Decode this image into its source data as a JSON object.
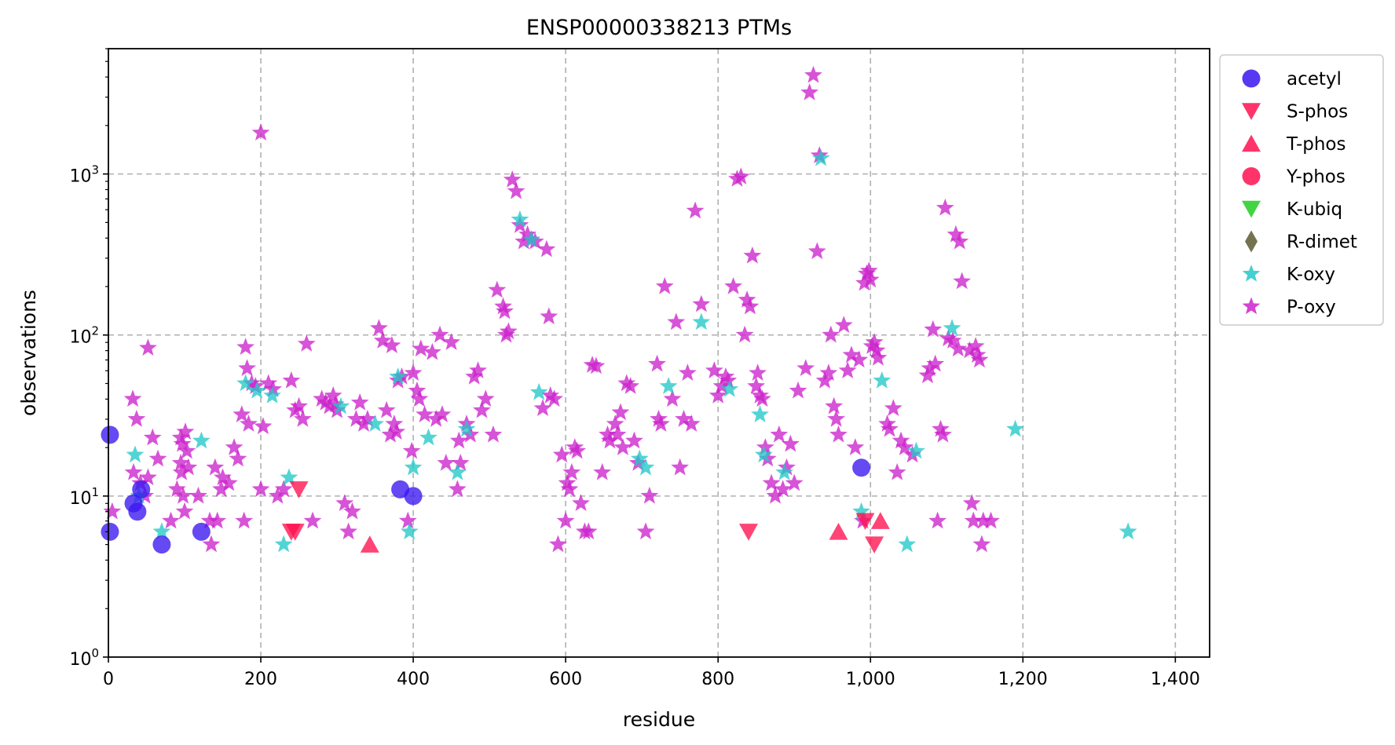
{
  "chart_data": {
    "type": "scatter",
    "title": "ENSP00000338213 PTMs",
    "xlabel": "residue",
    "ylabel": "observations",
    "xlim": [
      0,
      1445
    ],
    "ylim": [
      1,
      6000
    ],
    "yscale": "log",
    "grid": true,
    "legend_position": "outside-top-right",
    "x_ticks": [
      0,
      200,
      400,
      600,
      800,
      1000,
      1200,
      1400
    ],
    "x_tick_labels": [
      "0",
      "200",
      "400",
      "600",
      "800",
      "1,000",
      "1,200",
      "1,400"
    ],
    "y_ticks": [
      1,
      10,
      100,
      1000
    ],
    "y_tick_labels": [
      {
        "base": "10",
        "exp": "0"
      },
      {
        "base": "10",
        "exp": "1"
      },
      {
        "base": "10",
        "exp": "2"
      },
      {
        "base": "10",
        "exp": "3"
      }
    ],
    "series": [
      {
        "name": "acetyl",
        "marker": "circle",
        "color": "#3a16f0",
        "points": [
          [
            2,
            24
          ],
          [
            2,
            6
          ],
          [
            33,
            9
          ],
          [
            38,
            8
          ],
          [
            43,
            11
          ],
          [
            70,
            5
          ],
          [
            122,
            6
          ],
          [
            383,
            11
          ],
          [
            400,
            10
          ],
          [
            988,
            15
          ]
        ]
      },
      {
        "name": "S-phos",
        "marker": "triangle-down",
        "color": "#ff1050",
        "points": [
          [
            240,
            6
          ],
          [
            245,
            6
          ],
          [
            250,
            11
          ],
          [
            840,
            6
          ],
          [
            993,
            7
          ],
          [
            1005,
            5
          ]
        ]
      },
      {
        "name": "T-phos",
        "marker": "triangle-up",
        "color": "#ff1050",
        "points": [
          [
            343,
            5
          ],
          [
            958,
            6
          ],
          [
            1013,
            7
          ]
        ]
      },
      {
        "name": "Y-phos",
        "marker": "circle",
        "color": "#ff1050",
        "points": []
      },
      {
        "name": "K-ubiq",
        "marker": "triangle-down",
        "color": "#22cc22",
        "points": []
      },
      {
        "name": "R-dimet",
        "marker": "diamond",
        "color": "#5a5a30",
        "points": []
      },
      {
        "name": "K-oxy",
        "marker": "star",
        "color": "#22c8c8",
        "points": [
          [
            35,
            18
          ],
          [
            40,
            10
          ],
          [
            70,
            6
          ],
          [
            122,
            22
          ],
          [
            180,
            50
          ],
          [
            195,
            45
          ],
          [
            215,
            42
          ],
          [
            230,
            5
          ],
          [
            237,
            13
          ],
          [
            305,
            36
          ],
          [
            350,
            28
          ],
          [
            380,
            55
          ],
          [
            395,
            6
          ],
          [
            400,
            15
          ],
          [
            420,
            23
          ],
          [
            458,
            14
          ],
          [
            470,
            26
          ],
          [
            540,
            520
          ],
          [
            555,
            390
          ],
          [
            565,
            44
          ],
          [
            697,
            17
          ],
          [
            705,
            15
          ],
          [
            735,
            48
          ],
          [
            778,
            120
          ],
          [
            815,
            46
          ],
          [
            855,
            32
          ],
          [
            860,
            18
          ],
          [
            887,
            14
          ],
          [
            935,
            1250
          ],
          [
            988,
            8
          ],
          [
            1015,
            52
          ],
          [
            1048,
            5
          ],
          [
            1060,
            19
          ],
          [
            1107,
            110
          ],
          [
            1190,
            26
          ],
          [
            1338,
            6
          ]
        ]
      },
      {
        "name": "P-oxy",
        "marker": "star",
        "color": "#cc22cc",
        "points": [
          [
            5,
            8
          ],
          [
            32,
            40
          ],
          [
            37,
            30
          ],
          [
            33,
            14
          ],
          [
            42,
            12
          ],
          [
            52,
            83
          ],
          [
            58,
            23
          ],
          [
            65,
            17
          ],
          [
            52,
            13
          ],
          [
            48,
            10
          ],
          [
            82,
            7
          ],
          [
            90,
            11
          ],
          [
            95,
            23
          ],
          [
            97,
            21
          ],
          [
            95,
            16
          ],
          [
            96,
            14
          ],
          [
            98,
            10
          ],
          [
            101,
            25
          ],
          [
            103,
            19
          ],
          [
            105,
            15
          ],
          [
            100,
            8
          ],
          [
            118,
            10
          ],
          [
            133,
            7
          ],
          [
            135,
            5
          ],
          [
            140,
            15
          ],
          [
            143,
            7
          ],
          [
            148,
            11
          ],
          [
            150,
            13
          ],
          [
            158,
            12
          ],
          [
            165,
            20
          ],
          [
            170,
            17
          ],
          [
            175,
            32
          ],
          [
            178,
            7
          ],
          [
            180,
            84
          ],
          [
            182,
            62
          ],
          [
            184,
            28
          ],
          [
            188,
            50
          ],
          [
            193,
            48
          ],
          [
            200,
            1800
          ],
          [
            200,
            11
          ],
          [
            203,
            27
          ],
          [
            210,
            50
          ],
          [
            216,
            46
          ],
          [
            222,
            10
          ],
          [
            230,
            11
          ],
          [
            240,
            52
          ],
          [
            245,
            34
          ],
          [
            250,
            36
          ],
          [
            255,
            30
          ],
          [
            260,
            88
          ],
          [
            268,
            7
          ],
          [
            280,
            40
          ],
          [
            285,
            38
          ],
          [
            290,
            36
          ],
          [
            295,
            42
          ],
          [
            298,
            37
          ],
          [
            300,
            34
          ],
          [
            310,
            9
          ],
          [
            315,
            6
          ],
          [
            320,
            8
          ],
          [
            325,
            30
          ],
          [
            330,
            38
          ],
          [
            335,
            28
          ],
          [
            340,
            30
          ],
          [
            355,
            110
          ],
          [
            360,
            92
          ],
          [
            365,
            34
          ],
          [
            370,
            24
          ],
          [
            372,
            86
          ],
          [
            375,
            28
          ],
          [
            378,
            25
          ],
          [
            380,
            52
          ],
          [
            385,
            55
          ],
          [
            393,
            7
          ],
          [
            398,
            19
          ],
          [
            400,
            58
          ],
          [
            405,
            45
          ],
          [
            408,
            40
          ],
          [
            410,
            82
          ],
          [
            415,
            32
          ],
          [
            425,
            78
          ],
          [
            430,
            30
          ],
          [
            435,
            100
          ],
          [
            438,
            32
          ],
          [
            443,
            16
          ],
          [
            450,
            90
          ],
          [
            458,
            11
          ],
          [
            460,
            22
          ],
          [
            462,
            16
          ],
          [
            470,
            28
          ],
          [
            475,
            24
          ],
          [
            480,
            55
          ],
          [
            485,
            60
          ],
          [
            490,
            34
          ],
          [
            495,
            40
          ],
          [
            505,
            24
          ],
          [
            510,
            190
          ],
          [
            518,
            150
          ],
          [
            520,
            140
          ],
          [
            522,
            100
          ],
          [
            525,
            105
          ],
          [
            530,
            920
          ],
          [
            535,
            780
          ],
          [
            540,
            480
          ],
          [
            545,
            380
          ],
          [
            550,
            420
          ],
          [
            555,
            390
          ],
          [
            560,
            380
          ],
          [
            570,
            35
          ],
          [
            575,
            340
          ],
          [
            578,
            130
          ],
          [
            580,
            42
          ],
          [
            585,
            40
          ],
          [
            590,
            5
          ],
          [
            595,
            18
          ],
          [
            600,
            7
          ],
          [
            602,
            12
          ],
          [
            605,
            11
          ],
          [
            608,
            14
          ],
          [
            612,
            20
          ],
          [
            615,
            19
          ],
          [
            620,
            9
          ],
          [
            625,
            6
          ],
          [
            630,
            6
          ],
          [
            635,
            65
          ],
          [
            640,
            64
          ],
          [
            648,
            14
          ],
          [
            655,
            24
          ],
          [
            658,
            22
          ],
          [
            665,
            28
          ],
          [
            668,
            24
          ],
          [
            672,
            33
          ],
          [
            675,
            20
          ],
          [
            680,
            50
          ],
          [
            685,
            48
          ],
          [
            690,
            22
          ],
          [
            695,
            16
          ],
          [
            705,
            6
          ],
          [
            710,
            10
          ],
          [
            720,
            66
          ],
          [
            722,
            30
          ],
          [
            725,
            28
          ],
          [
            730,
            200
          ],
          [
            740,
            40
          ],
          [
            745,
            120
          ],
          [
            750,
            15
          ],
          [
            755,
            30
          ],
          [
            760,
            58
          ],
          [
            765,
            28
          ],
          [
            770,
            590
          ],
          [
            778,
            155
          ],
          [
            795,
            60
          ],
          [
            800,
            42
          ],
          [
            805,
            48
          ],
          [
            810,
            55
          ],
          [
            813,
            52
          ],
          [
            820,
            200
          ],
          [
            825,
            930
          ],
          [
            830,
            960
          ],
          [
            835,
            100
          ],
          [
            838,
            165
          ],
          [
            842,
            150
          ],
          [
            845,
            310
          ],
          [
            850,
            48
          ],
          [
            852,
            58
          ],
          [
            855,
            42
          ],
          [
            858,
            40
          ],
          [
            862,
            20
          ],
          [
            865,
            17
          ],
          [
            870,
            12
          ],
          [
            875,
            10
          ],
          [
            880,
            24
          ],
          [
            885,
            11
          ],
          [
            890,
            15
          ],
          [
            895,
            21
          ],
          [
            900,
            12
          ],
          [
            905,
            45
          ],
          [
            915,
            62
          ],
          [
            920,
            3200
          ],
          [
            925,
            4100
          ],
          [
            930,
            330
          ],
          [
            933,
            1300
          ],
          [
            940,
            52
          ],
          [
            945,
            58
          ],
          [
            948,
            100
          ],
          [
            952,
            36
          ],
          [
            955,
            30
          ],
          [
            958,
            24
          ],
          [
            965,
            115
          ],
          [
            970,
            60
          ],
          [
            975,
            75
          ],
          [
            980,
            20
          ],
          [
            985,
            70
          ],
          [
            990,
            7
          ],
          [
            992,
            210
          ],
          [
            995,
            240
          ],
          [
            998,
            250
          ],
          [
            1000,
            220
          ],
          [
            1002,
            85
          ],
          [
            1005,
            90
          ],
          [
            1008,
            80
          ],
          [
            1010,
            72
          ],
          [
            1022,
            28
          ],
          [
            1025,
            26
          ],
          [
            1030,
            35
          ],
          [
            1035,
            14
          ],
          [
            1040,
            22
          ],
          [
            1045,
            20
          ],
          [
            1055,
            18
          ],
          [
            1075,
            56
          ],
          [
            1078,
            62
          ],
          [
            1082,
            108
          ],
          [
            1085,
            66
          ],
          [
            1088,
            7
          ],
          [
            1092,
            26
          ],
          [
            1095,
            24
          ],
          [
            1098,
            615
          ],
          [
            1102,
            95
          ],
          [
            1108,
            92
          ],
          [
            1112,
            420
          ],
          [
            1115,
            82
          ],
          [
            1117,
            380
          ],
          [
            1120,
            215
          ],
          [
            1130,
            80
          ],
          [
            1133,
            9
          ],
          [
            1135,
            7
          ],
          [
            1138,
            85
          ],
          [
            1140,
            75
          ],
          [
            1143,
            70
          ],
          [
            1146,
            5
          ],
          [
            1148,
            7
          ],
          [
            1158,
            7
          ]
        ]
      }
    ]
  }
}
